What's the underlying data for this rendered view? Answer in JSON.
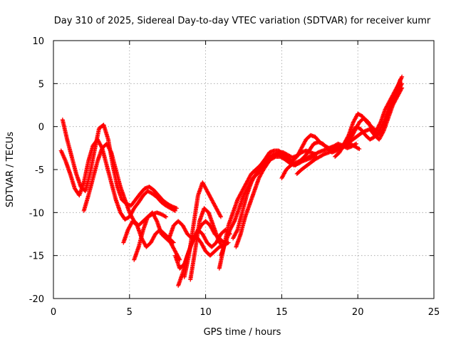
{
  "chart_data": {
    "type": "scatter",
    "title": "Day 310 of 2025, Sidereal Day-to-day VTEC variation (SDTVAR) for receiver kumr",
    "xlabel": "GPS time / hours",
    "ylabel": "SDTVAR / TECUs",
    "xlim": [
      0,
      25
    ],
    "ylim": [
      -20,
      10
    ],
    "xticks": [
      "0",
      "5",
      "10",
      "15",
      "20",
      "25"
    ],
    "yticks": [
      "-20",
      "-15",
      "-10",
      "-5",
      "0",
      "5",
      "10"
    ],
    "grid": true,
    "marker": "+",
    "color": "#ff0000",
    "series": [
      {
        "x": [
          0.5,
          0.8,
          1.1,
          1.4,
          1.7,
          2.0,
          2.3,
          2.6,
          2.9,
          3.2,
          3.5,
          3.8,
          4.1,
          4.4,
          4.7,
          5.0,
          5.3,
          5.6,
          5.9,
          6.2,
          6.5,
          6.8,
          7.1,
          7.4,
          7.7,
          8.0
        ],
        "y": [
          -2.8,
          -4.0,
          -5.5,
          -7.2,
          -8.0,
          -6.5,
          -4.0,
          -2.2,
          -1.5,
          -2.5,
          -4.5,
          -6.5,
          -8.5,
          -10.0,
          -10.8,
          -10.5,
          -9.5,
          -8.8,
          -8.0,
          -7.5,
          -7.8,
          -8.2,
          -8.8,
          -9.2,
          -9.5,
          -9.8
        ]
      },
      {
        "x": [
          0.6,
          0.9,
          1.2,
          1.5,
          1.8,
          2.1,
          2.4,
          2.7,
          3.0,
          3.3,
          3.6,
          3.9,
          4.2,
          4.5,
          4.8,
          5.1,
          5.4,
          5.7,
          6.0,
          6.3,
          6.6,
          6.9,
          7.2,
          7.5,
          7.8,
          8.1
        ],
        "y": [
          0.8,
          -1.5,
          -3.5,
          -5.5,
          -7.0,
          -7.5,
          -5.5,
          -2.8,
          -0.2,
          0.2,
          -1.5,
          -4.5,
          -7.0,
          -8.5,
          -9.0,
          -9.2,
          -8.5,
          -7.8,
          -7.2,
          -7.0,
          -7.4,
          -8.0,
          -8.6,
          -9.0,
          -9.3,
          -9.5
        ]
      },
      {
        "x": [
          2.0,
          2.3,
          2.6,
          2.9,
          3.2,
          3.5,
          3.8,
          4.1,
          4.4,
          4.7,
          5.0,
          5.3,
          5.6,
          5.9,
          6.2,
          6.5,
          6.8,
          7.1,
          7.4
        ],
        "y": [
          -9.8,
          -8.0,
          -6.0,
          -4.0,
          -2.5,
          -2.0,
          -3.0,
          -5.0,
          -7.0,
          -8.5,
          -10.0,
          -11.0,
          -11.5,
          -11.0,
          -10.5,
          -10.2,
          -10.0,
          -10.2,
          -10.5
        ]
      },
      {
        "x": [
          4.6,
          4.9,
          5.2,
          5.5,
          5.8,
          6.1,
          6.4,
          6.7,
          7.0,
          7.3,
          7.6,
          7.9
        ],
        "y": [
          -13.5,
          -12.0,
          -11.0,
          -11.5,
          -13.0,
          -14.0,
          -13.5,
          -12.5,
          -12.0,
          -12.5,
          -13.0,
          -13.5
        ]
      },
      {
        "x": [
          5.3,
          5.6,
          5.9,
          6.2,
          6.5,
          6.8,
          7.1,
          7.4,
          7.7,
          8.0,
          8.3
        ],
        "y": [
          -15.5,
          -14.0,
          -12.0,
          -10.5,
          -10.0,
          -11.0,
          -12.5,
          -13.0,
          -13.5,
          -14.5,
          -15.5
        ]
      },
      {
        "x": [
          7.6,
          7.9,
          8.2,
          8.5,
          8.8,
          9.1,
          9.4,
          9.7,
          10.0,
          10.3,
          10.6,
          10.9,
          11.2
        ],
        "y": [
          -13.0,
          -11.5,
          -11.0,
          -11.5,
          -12.5,
          -13.0,
          -12.5,
          -11.5,
          -11.0,
          -11.5,
          -12.5,
          -13.0,
          -13.5
        ]
      },
      {
        "x": [
          8.0,
          8.3,
          8.6,
          8.9,
          9.2,
          9.5,
          9.8,
          10.1,
          10.4,
          10.7,
          11.0,
          11.3,
          11.6
        ],
        "y": [
          -15.0,
          -16.5,
          -16.0,
          -14.5,
          -13.0,
          -12.0,
          -12.5,
          -13.5,
          -14.0,
          -13.5,
          -12.5,
          -12.0,
          -12.5
        ]
      },
      {
        "x": [
          8.2,
          8.5,
          8.8,
          9.1,
          9.4,
          9.7,
          10.0,
          10.3,
          10.6,
          10.9,
          11.2,
          11.5
        ],
        "y": [
          -18.5,
          -17.0,
          -15.0,
          -13.5,
          -12.8,
          -13.5,
          -14.5,
          -15.0,
          -14.5,
          -14.0,
          -13.8,
          -13.5
        ]
      },
      {
        "x": [
          8.6,
          8.9,
          9.2,
          9.5,
          9.8,
          10.1,
          10.4,
          10.7,
          11.0
        ],
        "y": [
          -17.5,
          -15.0,
          -11.5,
          -8.0,
          -6.5,
          -7.5,
          -8.5,
          -9.5,
          -10.5
        ]
      },
      {
        "x": [
          9.0,
          9.3,
          9.6,
          9.9,
          10.2,
          10.5,
          10.8,
          11.1
        ],
        "y": [
          -17.8,
          -14.5,
          -11.0,
          -9.5,
          -10.0,
          -11.5,
          -13.0,
          -14.0
        ]
      },
      {
        "x": [
          10.9,
          11.2,
          11.5,
          11.8,
          12.1,
          12.4,
          12.7,
          13.0,
          13.3,
          13.6,
          13.9,
          14.2,
          14.5,
          14.8,
          15.1,
          15.4,
          15.7,
          16.0,
          16.3,
          16.6,
          16.9,
          17.2
        ],
        "y": [
          -16.5,
          -14.0,
          -11.5,
          -10.0,
          -8.5,
          -7.5,
          -6.5,
          -5.5,
          -5.0,
          -4.5,
          -4.0,
          -3.5,
          -3.2,
          -3.0,
          -3.0,
          -3.3,
          -3.6,
          -3.4,
          -3.0,
          -2.8,
          -3.0,
          -3.2
        ]
      },
      {
        "x": [
          11.0,
          11.3,
          11.6,
          11.9,
          12.2,
          12.5,
          12.8,
          13.1,
          13.4,
          13.7,
          14.0,
          14.3,
          14.6,
          14.9,
          15.2,
          15.5,
          15.8,
          16.1,
          16.4,
          16.7,
          17.0,
          17.3
        ],
        "y": [
          -15.0,
          -13.5,
          -12.0,
          -11.0,
          -9.5,
          -8.0,
          -7.0,
          -6.0,
          -5.5,
          -4.8,
          -4.2,
          -3.8,
          -3.5,
          -3.5,
          -3.8,
          -4.2,
          -4.5,
          -4.3,
          -4.0,
          -3.8,
          -3.6,
          -3.5
        ]
      },
      {
        "x": [
          11.8,
          12.1,
          12.4,
          12.7,
          13.0,
          13.3,
          13.6,
          13.9,
          14.2,
          14.5,
          14.8,
          15.1,
          15.4,
          15.7,
          16.0,
          16.3,
          16.6,
          16.9,
          17.2,
          17.5,
          17.8,
          18.1,
          18.4,
          18.7,
          19.0,
          19.3,
          19.6,
          19.9
        ],
        "y": [
          -13.0,
          -12.0,
          -10.0,
          -8.0,
          -6.5,
          -5.5,
          -4.5,
          -3.8,
          -3.0,
          -2.8,
          -2.8,
          -3.2,
          -3.8,
          -4.0,
          -3.5,
          -2.5,
          -1.5,
          -1.0,
          -1.2,
          -1.8,
          -2.2,
          -2.5,
          -2.3,
          -2.0,
          -2.2,
          -2.5,
          -2.3,
          -2.0
        ]
      },
      {
        "x": [
          12.0,
          12.3,
          12.6,
          12.9,
          13.2,
          13.5,
          13.8,
          14.1,
          14.4,
          14.7,
          15.0,
          15.3,
          15.6,
          15.9,
          16.2,
          16.5,
          16.8,
          17.1,
          17.4,
          17.7,
          18.0,
          18.3,
          18.6,
          18.9,
          19.2,
          19.5,
          19.8,
          20.1
        ],
        "y": [
          -14.0,
          -12.5,
          -10.5,
          -9.0,
          -7.5,
          -6.0,
          -5.0,
          -4.2,
          -3.5,
          -3.2,
          -3.2,
          -3.5,
          -4.0,
          -4.5,
          -4.0,
          -3.5,
          -2.8,
          -2.0,
          -1.8,
          -2.0,
          -2.5,
          -3.0,
          -2.8,
          -2.5,
          -2.2,
          -2.0,
          -2.3,
          -2.6
        ]
      },
      {
        "x": [
          15.0,
          15.3,
          15.6,
          15.9,
          16.2,
          16.5,
          16.8,
          17.1,
          17.4,
          17.7,
          18.0,
          18.3,
          18.6,
          18.9,
          19.2,
          19.5,
          19.8,
          20.1,
          20.4,
          20.7,
          21.0,
          21.3,
          21.6,
          21.9,
          22.2,
          22.5,
          22.8
        ],
        "y": [
          -6.0,
          -5.0,
          -4.5,
          -4.2,
          -4.0,
          -3.8,
          -3.5,
          -3.3,
          -3.0,
          -2.8,
          -2.6,
          -2.5,
          -2.4,
          -2.3,
          -2.0,
          -1.5,
          -0.5,
          0.5,
          1.0,
          0.5,
          -0.5,
          -1.0,
          -0.5,
          1.0,
          2.5,
          4.0,
          5.5
        ]
      },
      {
        "x": [
          16.0,
          16.3,
          16.6,
          16.9,
          17.2,
          17.5,
          17.8,
          18.1,
          18.4,
          18.7,
          19.0,
          19.3,
          19.6,
          19.9,
          20.2,
          20.5,
          20.8,
          21.1,
          21.4,
          21.7,
          22.0,
          22.3,
          22.6,
          22.9
        ],
        "y": [
          -5.5,
          -5.0,
          -4.6,
          -4.2,
          -3.8,
          -3.5,
          -3.2,
          -3.0,
          -2.8,
          -2.5,
          -2.2,
          -1.5,
          -0.8,
          0.0,
          -0.3,
          -1.0,
          -1.5,
          -1.2,
          -0.5,
          0.5,
          2.0,
          3.0,
          4.0,
          5.0
        ]
      },
      {
        "x": [
          18.5,
          18.8,
          19.1,
          19.4,
          19.7,
          20.0,
          20.3,
          20.6,
          20.9,
          21.2,
          21.5,
          21.8,
          22.1,
          22.4,
          22.7,
          22.9
        ],
        "y": [
          -3.5,
          -3.0,
          -2.0,
          -1.0,
          0.5,
          1.5,
          1.2,
          0.5,
          0.0,
          -0.5,
          0.5,
          2.0,
          3.0,
          4.0,
          5.0,
          5.8
        ]
      },
      {
        "x": [
          19.0,
          19.3,
          19.6,
          19.9,
          20.2,
          20.5,
          20.8,
          21.1,
          21.4,
          21.7,
          22.0,
          22.3,
          22.6,
          22.9
        ],
        "y": [
          -2.5,
          -2.0,
          -1.6,
          -1.2,
          -0.8,
          -0.5,
          -0.3,
          -1.0,
          -1.5,
          -0.5,
          1.0,
          2.5,
          3.5,
          4.5
        ]
      }
    ]
  }
}
